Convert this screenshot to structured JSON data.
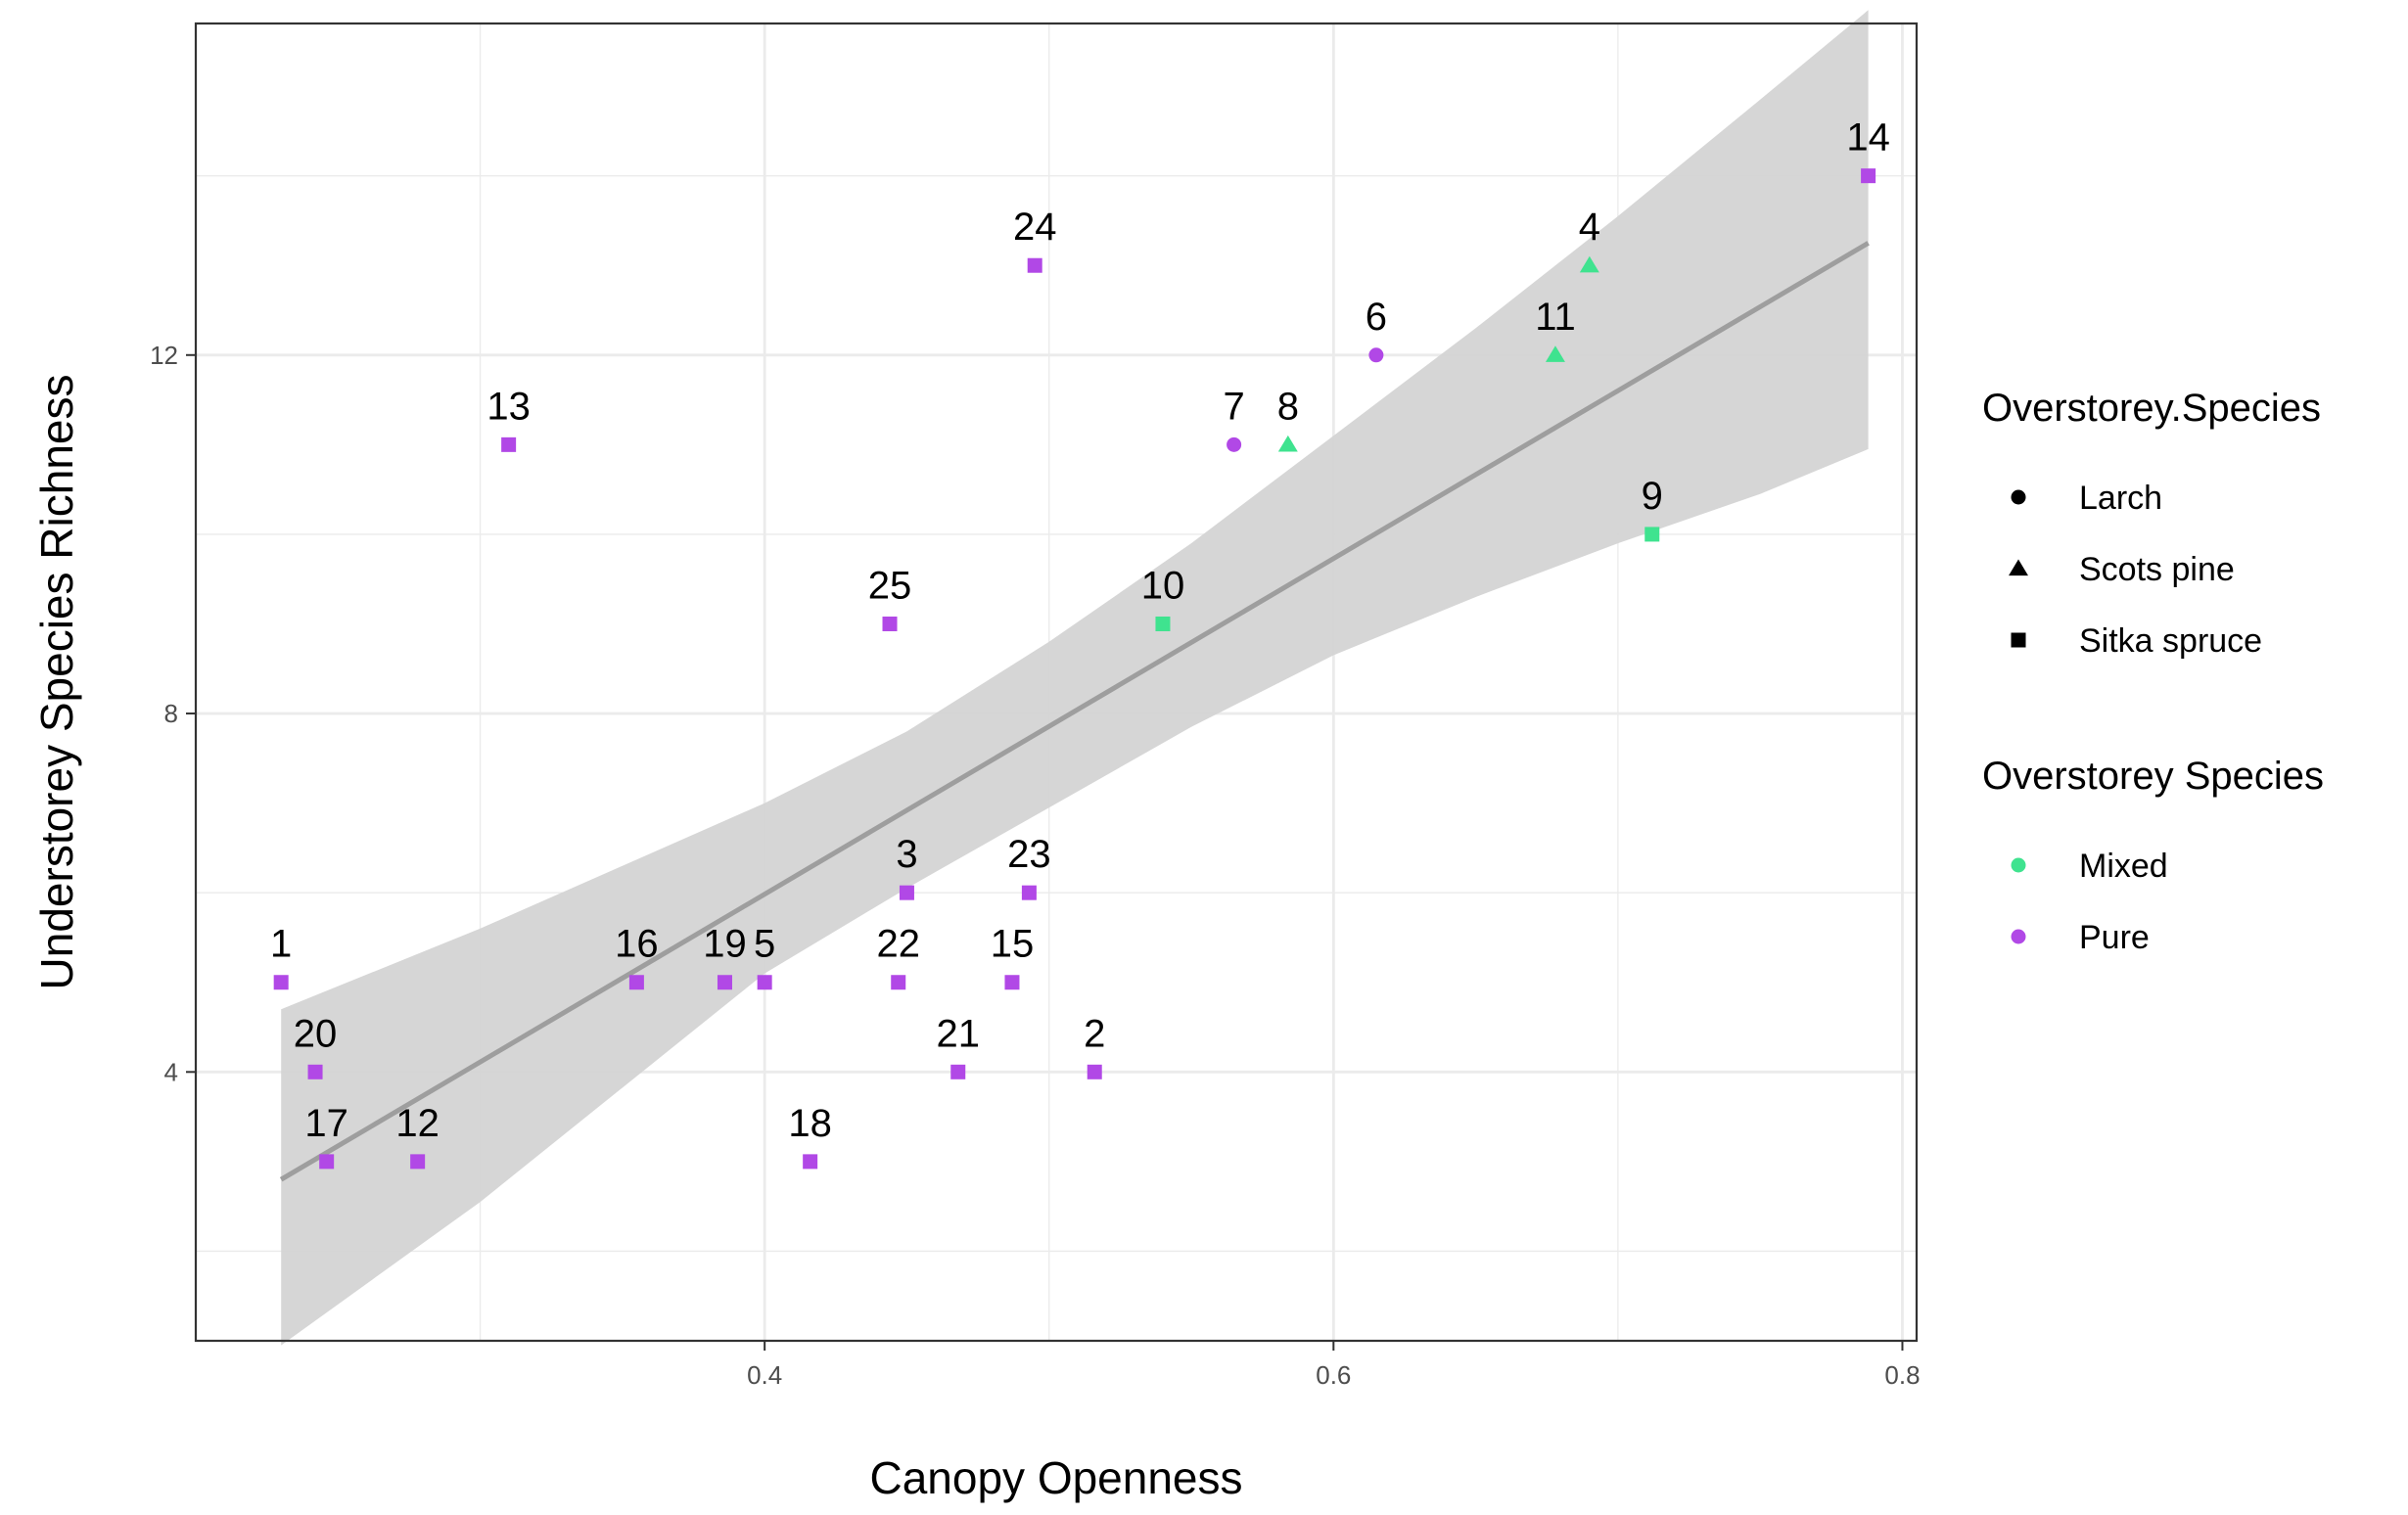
{
  "chart_data": {
    "type": "scatter",
    "xlabel": "Canopy Openness",
    "ylabel": "Understorey Species Richness",
    "xlim": [
      0.2,
      0.805
    ],
    "ylim": [
      1.0,
      15.7
    ],
    "x_ticks": [
      0.4,
      0.6,
      0.8
    ],
    "x_tick_labels": [
      "0.4",
      "0.6",
      "0.8"
    ],
    "x_minor_ticks": [
      0.3,
      0.5,
      0.7
    ],
    "y_ticks": [
      4,
      8,
      12
    ],
    "y_tick_labels": [
      "4",
      "8",
      "12"
    ],
    "y_minor_ticks": [
      2,
      6,
      10,
      14
    ],
    "grid": true,
    "colors": {
      "Mixed": "#3fe38f",
      "Pure": "#b148e6",
      "fit_line": "#9e9e9e",
      "band": "#d4d4d4",
      "grid": "#ebebeb"
    },
    "points": [
      {
        "label": "1",
        "x": 0.23,
        "y": 5,
        "shape": "Sitka spruce",
        "group": "Pure"
      },
      {
        "label": "2",
        "x": 0.516,
        "y": 4,
        "shape": "Sitka spruce",
        "group": "Pure"
      },
      {
        "label": "3",
        "x": 0.45,
        "y": 6,
        "shape": "Sitka spruce",
        "group": "Pure"
      },
      {
        "label": "4",
        "x": 0.69,
        "y": 13,
        "shape": "Scots pine",
        "group": "Mixed"
      },
      {
        "label": "5",
        "x": 0.4,
        "y": 5,
        "shape": "Sitka spruce",
        "group": "Pure"
      },
      {
        "label": "6",
        "x": 0.615,
        "y": 12,
        "shape": "Larch",
        "group": "Pure"
      },
      {
        "label": "7",
        "x": 0.565,
        "y": 11,
        "shape": "Larch",
        "group": "Pure"
      },
      {
        "label": "8",
        "x": 0.584,
        "y": 11,
        "shape": "Scots pine",
        "group": "Mixed"
      },
      {
        "label": "9",
        "x": 0.712,
        "y": 10,
        "shape": "Sitka spruce",
        "group": "Mixed"
      },
      {
        "label": "10",
        "x": 0.54,
        "y": 9,
        "shape": "Sitka spruce",
        "group": "Mixed"
      },
      {
        "label": "11",
        "x": 0.678,
        "y": 12,
        "shape": "Scots pine",
        "group": "Mixed"
      },
      {
        "label": "12",
        "x": 0.278,
        "y": 3,
        "shape": "Sitka spruce",
        "group": "Pure"
      },
      {
        "label": "13",
        "x": 0.31,
        "y": 11,
        "shape": "Sitka spruce",
        "group": "Pure"
      },
      {
        "label": "14",
        "x": 0.788,
        "y": 14,
        "shape": "Sitka spruce",
        "group": "Pure"
      },
      {
        "label": "15",
        "x": 0.487,
        "y": 5,
        "shape": "Sitka spruce",
        "group": "Pure"
      },
      {
        "label": "16",
        "x": 0.355,
        "y": 5,
        "shape": "Sitka spruce",
        "group": "Pure"
      },
      {
        "label": "17",
        "x": 0.246,
        "y": 3,
        "shape": "Sitka spruce",
        "group": "Pure"
      },
      {
        "label": "18",
        "x": 0.416,
        "y": 3,
        "shape": "Sitka spruce",
        "group": "Pure"
      },
      {
        "label": "19",
        "x": 0.386,
        "y": 5,
        "shape": "Sitka spruce",
        "group": "Pure"
      },
      {
        "label": "20",
        "x": 0.242,
        "y": 4,
        "shape": "Sitka spruce",
        "group": "Pure"
      },
      {
        "label": "21",
        "x": 0.468,
        "y": 4,
        "shape": "Sitka spruce",
        "group": "Pure"
      },
      {
        "label": "22",
        "x": 0.447,
        "y": 5,
        "shape": "Sitka spruce",
        "group": "Pure"
      },
      {
        "label": "23",
        "x": 0.493,
        "y": 6,
        "shape": "Sitka spruce",
        "group": "Pure"
      },
      {
        "label": "24",
        "x": 0.495,
        "y": 13,
        "shape": "Sitka spruce",
        "group": "Pure"
      },
      {
        "label": "25",
        "x": 0.444,
        "y": 9,
        "shape": "Sitka spruce",
        "group": "Pure"
      }
    ],
    "fit_line": {
      "x": [
        0.23,
        0.788
      ],
      "y": [
        2.8,
        13.25
      ]
    },
    "confidence_band": {
      "x": [
        0.23,
        0.3,
        0.4,
        0.45,
        0.5,
        0.55,
        0.6,
        0.65,
        0.7,
        0.75,
        0.788
      ],
      "upper": [
        4.7,
        5.6,
        7.0,
        7.8,
        8.8,
        9.9,
        11.1,
        12.3,
        13.55,
        14.85,
        15.85
      ],
      "lower": [
        0.95,
        2.55,
        5.1,
        6.05,
        6.95,
        7.85,
        8.65,
        9.3,
        9.9,
        10.45,
        10.95
      ]
    },
    "legends": [
      {
        "title": "Overstorey.Species",
        "kind": "shape",
        "entries": [
          {
            "label": "Larch",
            "shape": "Larch"
          },
          {
            "label": "Scots pine",
            "shape": "Scots pine"
          },
          {
            "label": "Sitka spruce",
            "shape": "Sitka spruce"
          }
        ]
      },
      {
        "title": "Overstorey Species",
        "kind": "color",
        "entries": [
          {
            "label": "Mixed",
            "group": "Mixed"
          },
          {
            "label": "Pure",
            "group": "Pure"
          }
        ]
      }
    ],
    "legend_position": "right"
  }
}
